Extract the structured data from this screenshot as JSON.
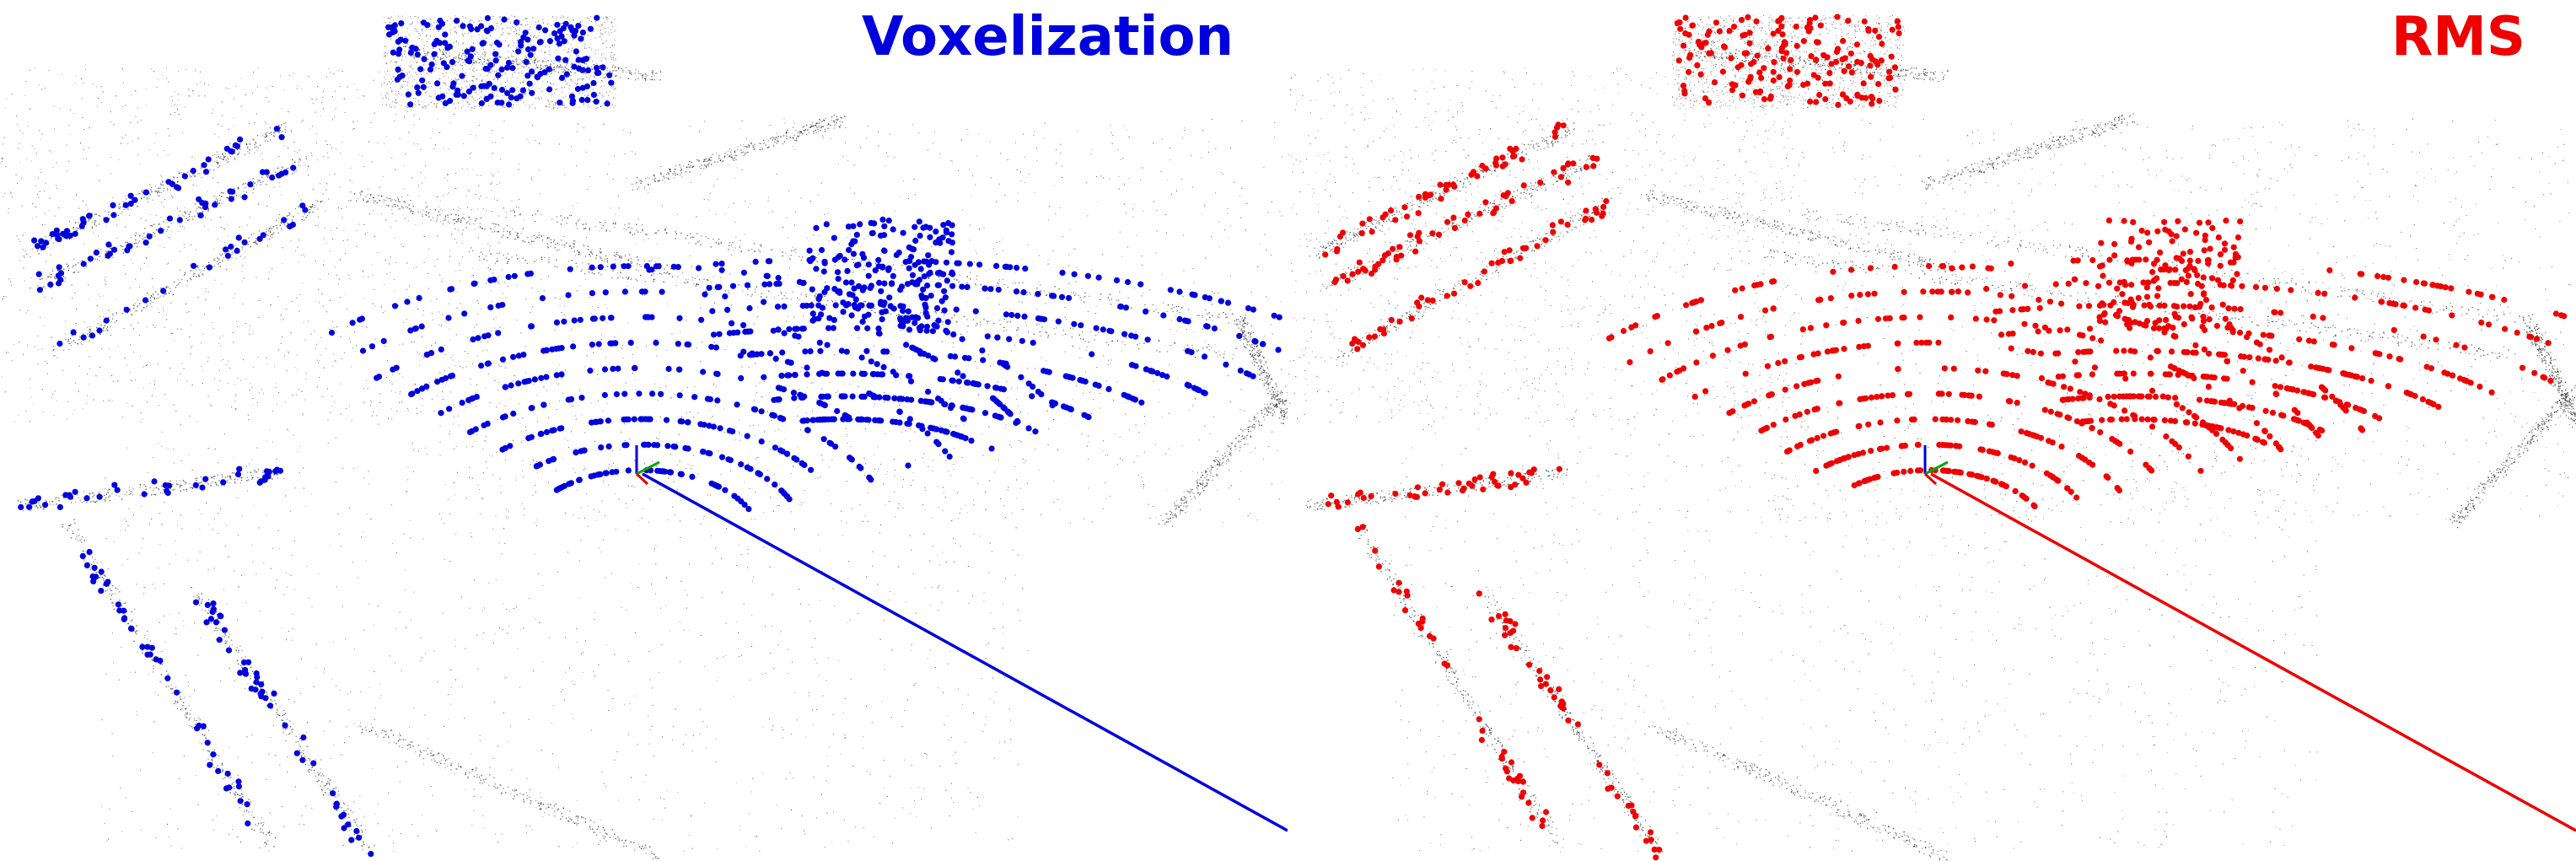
{
  "panels": [
    {
      "title": "Voxelization",
      "color": "#0000dd",
      "seed": 11,
      "sampled_point_count": 1500
    },
    {
      "title": "RMS",
      "color": "#ee0000",
      "seed": 29,
      "sampled_point_count": 1500
    }
  ],
  "cloud": {
    "background_point_color": "#1a1a1a",
    "background_point_count": 9000
  },
  "axes": {
    "x_color": "#dd0000",
    "y_color": "#00aa00",
    "z_color": "#0000dd"
  }
}
